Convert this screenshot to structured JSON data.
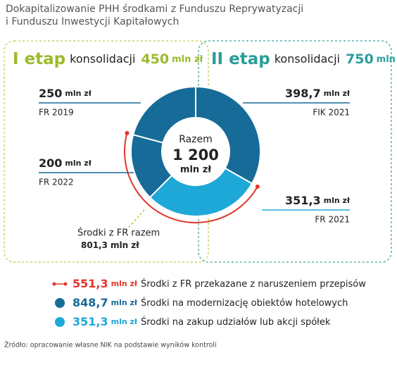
{
  "chart_data": {
    "type": "donut",
    "title": [
      "Dokapitalizowanie PHH środkami z Funduszu Reprywatyzacji",
      "i Funduszu Inwestycji Kapitałowych"
    ],
    "unit": "mln zł",
    "stages": [
      {
        "label": "I etap",
        "text": "konsolidacji",
        "value": 450,
        "color": "#9bbb2c",
        "border": "#b9cf4a"
      },
      {
        "label": "II etap",
        "text": "konsolidacji",
        "value": 750,
        "color": "#2a9d9a",
        "border": "#3aa8a0"
      }
    ],
    "categories": [
      "FIK 2021",
      "FR 2021",
      "FR 2022",
      "FR 2019"
    ],
    "values": [
      398.7,
      351.3,
      200,
      250
    ],
    "value_labels": [
      "398,7",
      "351,3",
      "200",
      "250"
    ],
    "colors": [
      "#176b98",
      "#1ea8d8",
      "#176b98",
      "#176b98"
    ],
    "center": {
      "label": "Razem",
      "total": {
        "value": 1200,
        "label": "1 200"
      }
    },
    "annotation": {
      "text": "Środki z FR razem",
      "value": 801.3,
      "value_label": "801,3"
    },
    "legend": [
      {
        "value": 551.3,
        "value_label": "551,3",
        "text": "Środki z FR przekazane z naruszeniem przepisów",
        "color": "#e2362b"
      },
      {
        "value": 848.7,
        "value_label": "848,7",
        "text": "Środki na modernizację obiektów hotelowych",
        "color": "#176b98"
      },
      {
        "value": 351.3,
        "value_label": "351,3",
        "text": "Środki na zakup udziałów lub akcji spółek",
        "color": "#1ea8d8"
      }
    ],
    "source": "Źródło: opracowanie własne NIK na podstawie wyników kontroli"
  }
}
